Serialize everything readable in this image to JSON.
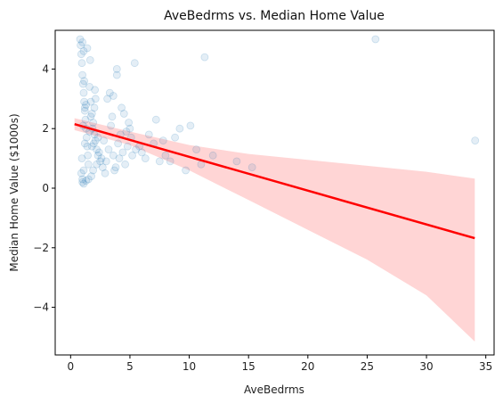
{
  "chart_data": {
    "type": "scatter",
    "title": "AveBedrms vs. Median Home Value",
    "xlabel": "AveBedrms",
    "ylabel": "Median Home Value ($1000s)",
    "xlim": [
      -1.3,
      35.7
    ],
    "ylim": [
      -5.6,
      5.3
    ],
    "xticks": [
      0,
      5,
      10,
      15,
      20,
      25,
      30,
      35
    ],
    "yticks": [
      -4,
      -2,
      0,
      2,
      4
    ],
    "grid": false,
    "colors": {
      "points": "#1f77b4",
      "regression_line": "#ff0000",
      "confidence_band": "#ffb3b3"
    },
    "regression": {
      "x": [
        0.33,
        34.07
      ],
      "y": [
        2.15,
        -1.68
      ]
    },
    "confidence_band": {
      "x": [
        0.33,
        5.0,
        10.0,
        15.0,
        20.0,
        25.0,
        30.0,
        34.07
      ],
      "lower": [
        1.95,
        1.45,
        0.6,
        -0.4,
        -1.4,
        -2.4,
        -3.6,
        -5.15
      ],
      "upper": [
        2.35,
        1.9,
        1.45,
        1.15,
        0.95,
        0.75,
        0.55,
        0.32
      ]
    },
    "points": {
      "x": [
        0.8,
        0.85,
        0.9,
        0.95,
        1.0,
        1.05,
        1.1,
        1.15,
        1.2,
        1.25,
        1.3,
        1.35,
        1.4,
        1.45,
        1.5,
        0.9,
        1.0,
        1.1,
        1.2,
        1.3,
        1.0,
        1.1,
        0.95,
        1.05,
        1.15,
        1.6,
        1.7,
        1.8,
        1.9,
        2.0,
        2.1,
        2.2,
        2.3,
        2.5,
        2.7,
        1.6,
        1.8,
        2.0,
        2.2,
        2.4,
        1.7,
        1.9,
        2.1,
        2.3,
        2.6,
        1.65,
        1.75,
        1.85,
        1.95,
        2.05,
        2.8,
        3.0,
        3.2,
        3.4,
        3.6,
        3.8,
        4.0,
        4.2,
        4.4,
        4.6,
        4.8,
        5.0,
        5.2,
        5.5,
        3.1,
        3.5,
        3.9,
        4.3,
        4.7,
        5.1,
        2.9,
        3.3,
        3.7,
        4.1,
        4.5,
        5.8,
        6.0,
        6.3,
        6.6,
        7.0,
        7.2,
        7.5,
        7.8,
        8.0,
        8.4,
        8.8,
        9.2,
        9.7,
        10.1,
        10.6,
        11.0,
        11.3,
        12.0,
        14.0,
        15.3,
        25.7,
        34.1,
        1.0,
        1.1,
        1.3,
        1.5,
        1.2,
        1.4,
        3.6,
        3.9,
        4.9,
        5.4
      ],
      "y": [
        5.0,
        4.8,
        4.5,
        4.2,
        3.8,
        3.5,
        3.2,
        2.9,
        2.6,
        2.3,
        2.0,
        1.7,
        1.4,
        1.1,
        0.8,
        0.5,
        0.3,
        0.6,
        1.5,
        2.8,
        4.9,
        4.6,
        1.0,
        2.1,
        3.6,
        3.4,
        2.9,
        2.5,
        2.2,
        1.8,
        1.6,
        1.3,
        1.1,
        0.9,
        0.7,
        1.9,
        1.4,
        2.7,
        0.8,
        1.2,
        2.4,
        0.6,
        3.0,
        1.7,
        1.0,
        4.3,
        0.4,
        2.0,
        1.5,
        3.3,
        1.6,
        0.9,
        1.3,
        2.1,
        1.1,
        0.7,
        1.5,
        1.8,
        1.2,
        0.8,
        1.4,
        2.0,
        1.1,
        1.3,
        3.0,
        2.4,
        4.0,
        2.7,
        1.9,
        1.7,
        0.5,
        3.2,
        0.6,
        1.0,
        2.5,
        1.4,
        1.2,
        1.0,
        1.8,
        1.5,
        2.3,
        0.9,
        1.6,
        1.1,
        0.9,
        1.7,
        2.0,
        0.6,
        2.1,
        1.3,
        0.8,
        4.4,
        1.1,
        0.9,
        0.7,
        5.0,
        1.6,
        0.2,
        0.15,
        0.25,
        0.3,
        2.7,
        4.7,
        3.1,
        3.8,
        2.2,
        4.2
      ]
    }
  }
}
